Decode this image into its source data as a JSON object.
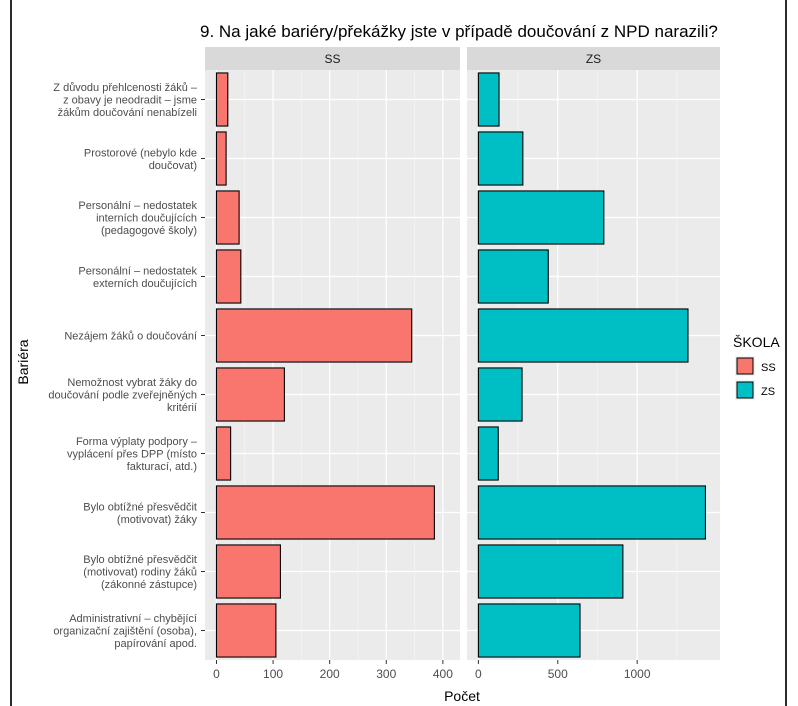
{
  "chart_data": {
    "type": "bar",
    "orientation": "horizontal",
    "title": "9. Na jaké bariéry/překážky jste v případě doučování z NPD narazili?",
    "xlabel": "Počet",
    "ylabel": "Bariéra",
    "grid": true,
    "legend": {
      "title": "ŠKOLA",
      "position": "right",
      "entries": [
        {
          "label": "SS",
          "color": "#F8766D"
        },
        {
          "label": "ZS",
          "color": "#00BFC4"
        }
      ]
    },
    "categories": [
      "Z důvodu přehlcenosti žáků –\nz obavy je neodradit – jsme\nžákům doučování nenabízeli",
      "Prostorové (nebylo kde\ndoučovat)",
      "Personální – nedostatek\ninterních doučujících\n(pedagogové školy)",
      "Personální – nedostatek\nexterních doučujících",
      "Nezájem žáků o doučování",
      "Nemožnost vybrat žáky do\ndoučování podle zveřejněných\nkritérií",
      "Forma výplaty podpory –\nvyplácení přes DPP (místo\nfakturací, atd.)",
      "Bylo obtížné přesvědčit\n(motivovat) žáky",
      "Bylo obtížné přesvědčit\n(motivovat) rodiny žáků\n(zákonné zástupce)",
      "Administrativní – chybějící\norganizační zajištění (osoba),\npapírování apod."
    ],
    "panels": [
      {
        "label": "SS",
        "color": "#F8766D",
        "xlim": [
          0,
          410
        ],
        "ticks": [
          0,
          100,
          200,
          300,
          400
        ],
        "values": [
          20,
          17,
          40,
          43,
          345,
          120,
          25,
          385,
          113,
          105
        ]
      },
      {
        "label": "ZS",
        "color": "#00BFC4",
        "xlim": [
          0,
          1450
        ],
        "ticks": [
          0,
          500,
          1000
        ],
        "values": [
          130,
          280,
          790,
          440,
          1320,
          275,
          125,
          1430,
          910,
          640
        ]
      }
    ]
  }
}
